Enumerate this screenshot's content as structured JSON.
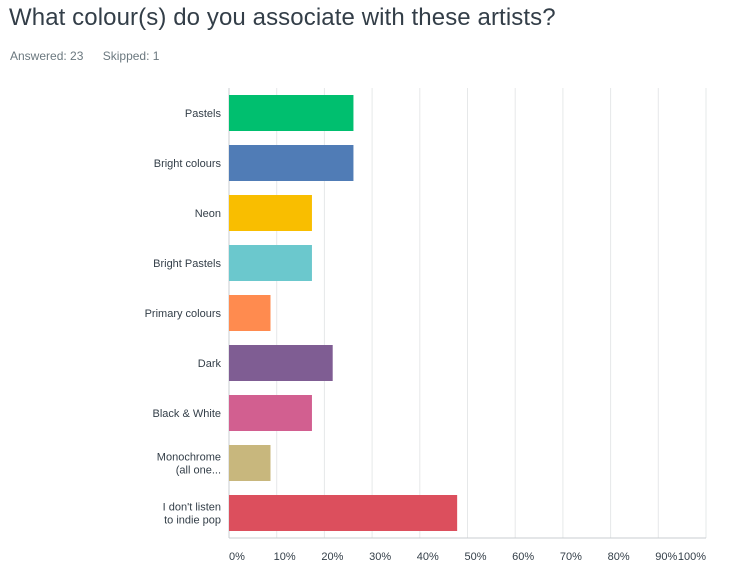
{
  "question": {
    "title": "What colour(s) do you associate with these artists?",
    "answered": "Answered: 23",
    "skipped": "Skipped: 1"
  },
  "chart_data": {
    "type": "bar",
    "orientation": "horizontal",
    "categories": [
      [
        "Pastels"
      ],
      [
        "Bright colours"
      ],
      [
        "Neon"
      ],
      [
        "Bright Pastels"
      ],
      [
        "Primary colours"
      ],
      [
        "Dark"
      ],
      [
        "Black & White"
      ],
      [
        "Monochrome",
        "(all one..."
      ],
      [
        "I don't listen",
        "to indie pop"
      ]
    ],
    "values": [
      26.09,
      26.09,
      17.39,
      17.39,
      8.7,
      21.74,
      17.39,
      8.7,
      47.83
    ],
    "colors": [
      "#00bf6f",
      "#507cb6",
      "#f9be00",
      "#6bc8cd",
      "#ff8b4f",
      "#7f5d93",
      "#d25f90",
      "#c8b77d",
      "#dc4f5d"
    ],
    "xlim": [
      0,
      100
    ],
    "xticks": [
      "0%",
      "10%",
      "20%",
      "30%",
      "40%",
      "50%",
      "60%",
      "70%",
      "80%",
      "90%",
      "100%"
    ],
    "grid": true,
    "legend": "none",
    "title": "",
    "xlabel": "",
    "ylabel": ""
  }
}
